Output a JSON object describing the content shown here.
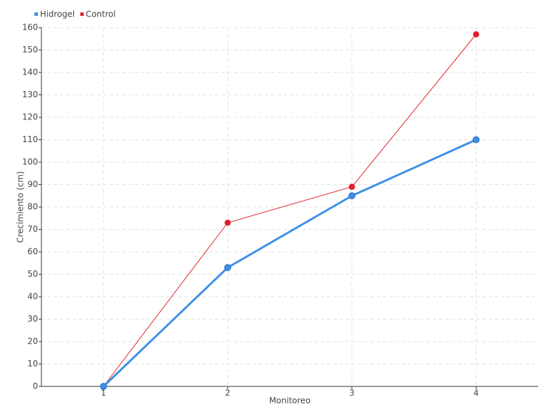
{
  "chart_data": {
    "type": "line",
    "x_label": "Monitoreo",
    "y_label": "Crecimiento (cm)",
    "categories": [
      "1",
      "2",
      "3",
      "4"
    ],
    "series": [
      {
        "name": "Hidrogel",
        "color": "#3d8fe8",
        "values": [
          0,
          53,
          85,
          110
        ]
      },
      {
        "name": "Control",
        "color": "#e0202a",
        "values": [
          0,
          73,
          89,
          157
        ]
      }
    ],
    "ylim": [
      0,
      160
    ],
    "yticks": [
      0,
      10,
      20,
      30,
      40,
      50,
      60,
      70,
      80,
      90,
      100,
      110,
      120,
      130,
      140,
      150,
      160
    ],
    "grid": true,
    "legend": "top-left"
  }
}
